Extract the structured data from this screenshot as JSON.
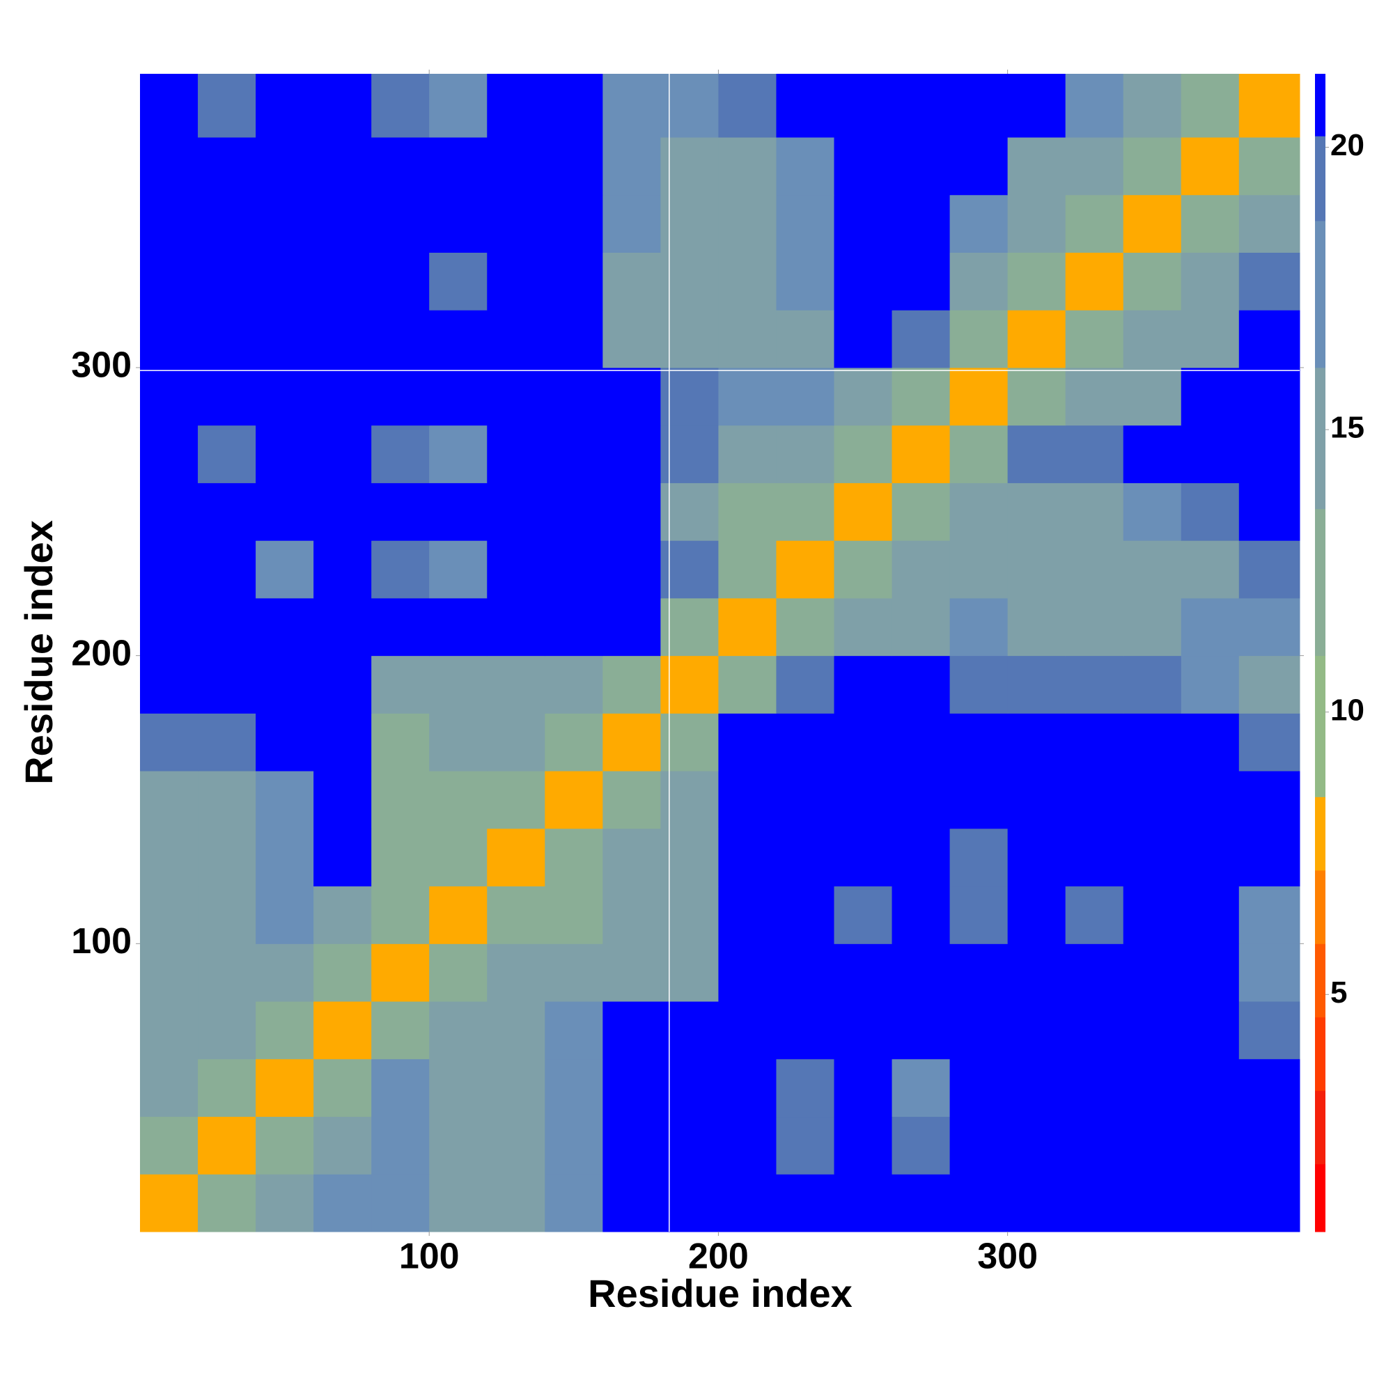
{
  "chart_data": {
    "type": "heatmap",
    "xlabel": "Residue index",
    "ylabel": "Residue index",
    "xlim": [
      0,
      401
    ],
    "ylim": [
      0,
      402
    ],
    "xticks": [
      100,
      200,
      300
    ],
    "yticks": [
      100,
      200,
      300
    ],
    "xbins": [
      0,
      20,
      40,
      60,
      80,
      100,
      120,
      140,
      160,
      180,
      200,
      220,
      240,
      260,
      280,
      300,
      320,
      340,
      360,
      380,
      401
    ],
    "ybins": [
      0,
      20,
      40,
      60,
      80,
      100,
      120,
      140,
      160,
      180,
      200,
      220,
      240,
      260,
      280,
      300,
      320,
      340,
      360,
      380,
      402
    ],
    "z": [
      [
        8,
        12,
        15,
        17,
        17,
        16,
        16,
        17,
        21,
        21,
        21,
        21,
        21,
        21,
        21,
        21,
        21,
        21,
        21,
        21
      ],
      [
        12,
        8,
        12,
        16,
        17,
        16,
        16,
        17,
        21,
        21,
        21,
        19,
        21,
        20,
        21,
        21,
        21,
        21,
        21,
        21
      ],
      [
        14,
        12,
        8,
        12,
        17,
        15,
        15,
        17,
        21,
        21,
        21,
        19,
        21,
        18,
        21,
        21,
        21,
        21,
        21,
        21
      ],
      [
        16,
        15,
        12,
        8,
        13,
        16,
        16,
        18,
        21,
        21,
        21,
        21,
        21,
        21,
        21,
        21,
        21,
        21,
        21,
        20
      ],
      [
        16,
        15,
        16,
        12,
        8,
        13,
        15,
        14,
        16,
        16,
        21,
        21,
        21,
        21,
        21,
        21,
        21,
        21,
        21,
        18
      ],
      [
        14,
        16,
        17,
        16,
        12,
        8,
        12,
        13,
        14,
        16,
        21,
        21,
        19,
        21,
        19,
        21,
        20,
        21,
        21,
        18
      ],
      [
        15,
        16,
        18,
        21,
        13,
        12,
        8,
        12,
        14,
        16,
        21,
        21,
        21,
        21,
        19,
        21,
        21,
        21,
        21,
        21
      ],
      [
        15,
        16,
        18,
        21,
        13,
        13,
        12,
        8,
        13,
        16,
        21,
        21,
        21,
        21,
        21,
        21,
        21,
        21,
        21,
        21
      ],
      [
        20,
        20,
        21,
        21,
        13,
        14,
        14,
        13,
        8,
        12,
        21,
        21,
        21,
        21,
        21,
        21,
        21,
        21,
        21,
        19
      ],
      [
        21,
        21,
        21,
        21,
        14,
        15,
        15,
        14,
        12,
        8,
        12,
        19,
        21,
        21,
        20,
        20,
        19,
        19,
        18,
        16
      ],
      [
        21,
        21,
        21,
        21,
        21,
        21,
        21,
        21,
        21,
        12,
        8,
        12,
        14,
        14,
        17,
        15,
        14,
        15,
        17,
        18
      ],
      [
        21,
        21,
        18,
        21,
        19,
        18,
        21,
        21,
        21,
        19,
        12,
        8,
        12,
        14,
        15,
        14,
        14,
        15,
        16,
        19
      ],
      [
        21,
        21,
        21,
        21,
        21,
        21,
        21,
        21,
        21,
        16,
        13,
        12,
        8,
        12,
        16,
        16,
        16,
        17,
        19,
        21
      ],
      [
        21,
        19,
        21,
        21,
        19,
        18,
        21,
        21,
        21,
        19,
        15,
        14,
        12,
        8,
        12,
        19,
        19,
        21,
        21,
        21
      ],
      [
        21,
        21,
        21,
        21,
        21,
        21,
        21,
        21,
        21,
        19,
        17,
        18,
        15,
        12,
        8,
        12,
        14,
        16,
        21,
        21
      ],
      [
        21,
        21,
        21,
        21,
        21,
        21,
        21,
        21,
        16,
        15,
        16,
        16,
        21,
        19,
        12,
        8,
        12,
        14,
        16,
        21
      ],
      [
        21,
        21,
        21,
        21,
        21,
        20,
        21,
        21,
        16,
        16,
        16,
        17,
        21,
        21,
        15,
        12,
        8,
        12,
        14,
        19
      ],
      [
        21,
        21,
        21,
        21,
        21,
        21,
        21,
        21,
        17,
        15,
        16,
        18,
        21,
        21,
        17,
        14,
        12,
        8,
        12,
        16
      ],
      [
        21,
        21,
        21,
        21,
        21,
        21,
        21,
        21,
        18,
        16,
        16,
        17,
        21,
        21,
        21,
        16,
        14,
        12,
        8,
        12
      ],
      [
        21,
        20,
        21,
        21,
        19,
        18,
        21,
        21,
        18,
        17,
        19,
        21,
        21,
        21,
        21,
        21,
        18,
        16,
        12,
        8
      ]
    ],
    "zlim": [
      0.8,
      21.3
    ],
    "zticks": [
      5,
      10,
      15,
      20
    ],
    "color_levels": [
      0.8,
      2.0,
      3.3,
      4.6,
      5.9,
      7.2,
      8.5,
      11.0,
      13.6,
      16.1,
      18.7,
      20.2,
      21.3
    ],
    "colors": [
      "#ff0000",
      "#f5200a",
      "#ff3d00",
      "#ff5a00",
      "#ff8000",
      "#ffaa00",
      "#93ba86",
      "#8aae96",
      "#7fa0a8",
      "#6a8fb8",
      "#5577b5",
      "#0000ff"
    ],
    "crosshair": {
      "x": 183,
      "y": 299
    }
  }
}
